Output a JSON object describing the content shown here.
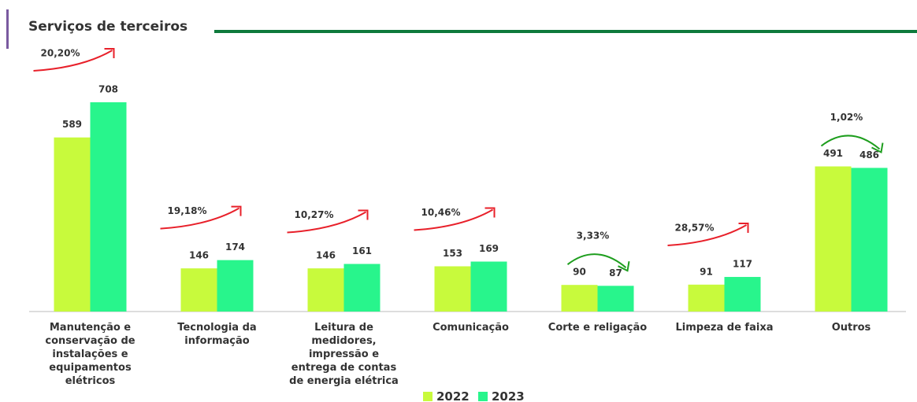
{
  "chart_data": {
    "type": "bar",
    "title": "Serviços de terceiros",
    "categories": [
      "Manutenção e conservação de instalações e equipamentos elétricos",
      "Tecnologia da informação",
      "Leitura de medidores, impressão e entrega de contas de energia elétrica",
      "Comunicação",
      "Corte e religação",
      "Limpeza de faixa",
      "Outros"
    ],
    "series": [
      {
        "name": "2022",
        "color": "#c8fa3c",
        "values": [
          589,
          146,
          146,
          153,
          90,
          91,
          491
        ]
      },
      {
        "name": "2023",
        "color": "#28f58c",
        "values": [
          708,
          174,
          161,
          169,
          87,
          117,
          486
        ]
      }
    ],
    "annotations": [
      "20,20%",
      "19,18%",
      "10,27%",
      "10,46%",
      "3,33%",
      "28,57%",
      "1,02%"
    ],
    "annotation_colors": [
      "#e8202a",
      "#e8202a",
      "#e8202a",
      "#e8202a",
      "#1e9e1e",
      "#e8202a",
      "#1e9e1e"
    ],
    "legend": "bottom"
  }
}
